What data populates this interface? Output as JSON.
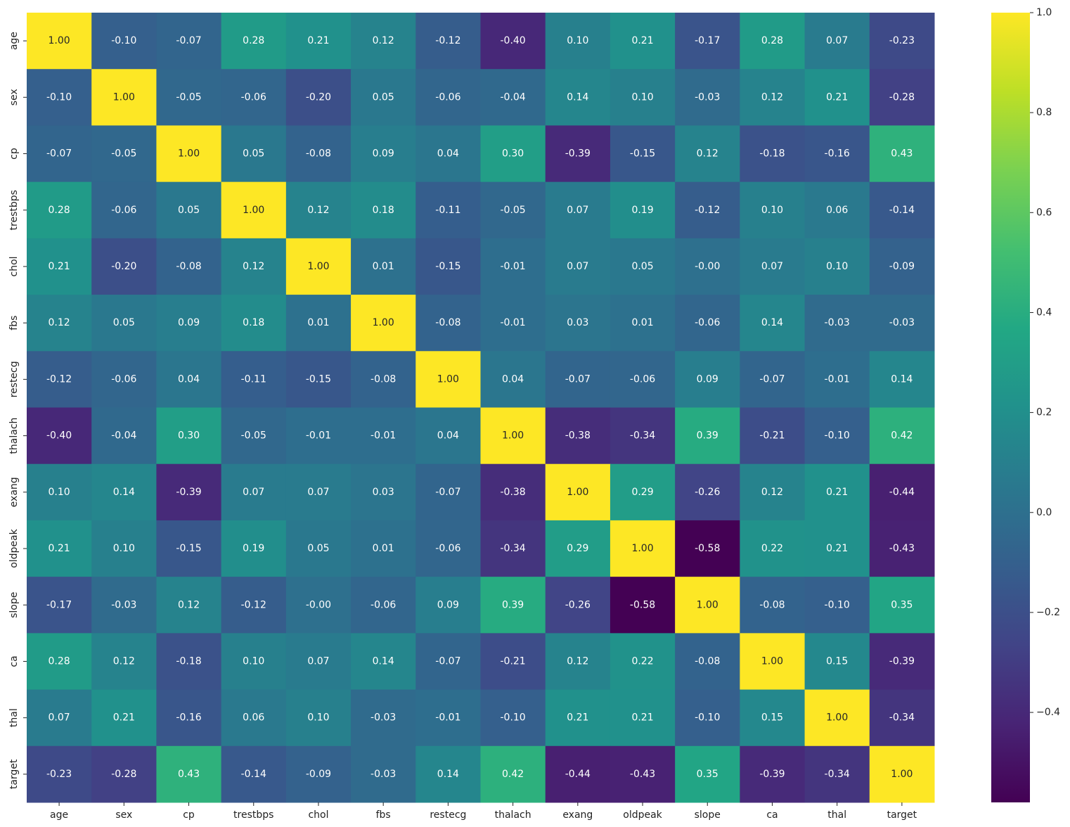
{
  "chart_data": {
    "type": "heatmap",
    "cmap": "viridis",
    "categories": [
      "age",
      "sex",
      "cp",
      "trestbps",
      "chol",
      "fbs",
      "restecg",
      "thalach",
      "exang",
      "oldpeak",
      "slope",
      "ca",
      "thal",
      "target"
    ],
    "values": [
      [
        1,
        -0.1,
        -0.07,
        0.28,
        0.21,
        0.12,
        -0.12,
        -0.4,
        0.1,
        0.21,
        -0.17,
        0.28,
        0.07,
        -0.23
      ],
      [
        -0.1,
        1,
        -0.05,
        -0.06,
        -0.2,
        0.05,
        -0.06,
        -0.04,
        0.14,
        0.1,
        -0.03,
        0.12,
        0.21,
        -0.28
      ],
      [
        -0.07,
        -0.05,
        1,
        0.05,
        -0.08,
        0.09,
        0.04,
        0.3,
        -0.39,
        -0.15,
        0.12,
        -0.18,
        -0.16,
        0.43
      ],
      [
        0.28,
        -0.06,
        0.05,
        1,
        0.12,
        0.18,
        -0.11,
        -0.05,
        0.07,
        0.19,
        -0.12,
        0.1,
        0.06,
        -0.14
      ],
      [
        0.21,
        -0.2,
        -0.08,
        0.12,
        1,
        0.01,
        -0.15,
        -0.01,
        0.07,
        0.05,
        0,
        0.07,
        0.1,
        -0.09
      ],
      [
        0.12,
        0.05,
        0.09,
        0.18,
        0.01,
        1,
        -0.08,
        -0.01,
        0.03,
        0.01,
        -0.06,
        0.14,
        -0.03,
        -0.03
      ],
      [
        -0.12,
        -0.06,
        0.04,
        -0.11,
        -0.15,
        -0.08,
        1,
        0.04,
        -0.07,
        -0.06,
        0.09,
        -0.07,
        -0.01,
        0.14
      ],
      [
        -0.4,
        -0.04,
        0.3,
        -0.05,
        -0.01,
        -0.01,
        0.04,
        1,
        -0.38,
        -0.34,
        0.39,
        -0.21,
        -0.1,
        0.42
      ],
      [
        0.1,
        0.14,
        -0.39,
        0.07,
        0.07,
        0.03,
        -0.07,
        -0.38,
        1,
        0.29,
        -0.26,
        0.12,
        0.21,
        -0.44
      ],
      [
        0.21,
        0.1,
        -0.15,
        0.19,
        0.05,
        0.01,
        -0.06,
        -0.34,
        0.29,
        1,
        -0.58,
        0.22,
        0.21,
        -0.43
      ],
      [
        -0.17,
        -0.03,
        0.12,
        -0.12,
        0,
        -0.06,
        0.09,
        0.39,
        -0.26,
        -0.58,
        1,
        -0.08,
        -0.1,
        0.35
      ],
      [
        0.28,
        0.12,
        -0.18,
        0.1,
        0.07,
        0.14,
        -0.07,
        -0.21,
        0.12,
        0.22,
        -0.08,
        1,
        0.15,
        -0.39
      ],
      [
        0.07,
        0.21,
        -0.16,
        0.06,
        0.1,
        -0.03,
        -0.01,
        -0.1,
        0.21,
        0.21,
        -0.1,
        0.15,
        1,
        -0.34
      ],
      [
        -0.23,
        -0.28,
        0.43,
        -0.14,
        -0.09,
        -0.03,
        0.14,
        0.42,
        -0.44,
        -0.43,
        0.35,
        -0.39,
        -0.34,
        1
      ]
    ],
    "value_labels": [
      [
        "1.00",
        "-0.10",
        "-0.07",
        "0.28",
        "0.21",
        "0.12",
        "-0.12",
        "-0.40",
        "0.10",
        "0.21",
        "-0.17",
        "0.28",
        "0.07",
        "-0.23"
      ],
      [
        "-0.10",
        "1.00",
        "-0.05",
        "-0.06",
        "-0.20",
        "0.05",
        "-0.06",
        "-0.04",
        "0.14",
        "0.10",
        "-0.03",
        "0.12",
        "0.21",
        "-0.28"
      ],
      [
        "-0.07",
        "-0.05",
        "1.00",
        "0.05",
        "-0.08",
        "0.09",
        "0.04",
        "0.30",
        "-0.39",
        "-0.15",
        "0.12",
        "-0.18",
        "-0.16",
        "0.43"
      ],
      [
        "0.28",
        "-0.06",
        "0.05",
        "1.00",
        "0.12",
        "0.18",
        "-0.11",
        "-0.05",
        "0.07",
        "0.19",
        "-0.12",
        "0.10",
        "0.06",
        "-0.14"
      ],
      [
        "0.21",
        "-0.20",
        "-0.08",
        "0.12",
        "1.00",
        "0.01",
        "-0.15",
        "-0.01",
        "0.07",
        "0.05",
        "-0.00",
        "0.07",
        "0.10",
        "-0.09"
      ],
      [
        "0.12",
        "0.05",
        "0.09",
        "0.18",
        "0.01",
        "1.00",
        "-0.08",
        "-0.01",
        "0.03",
        "0.01",
        "-0.06",
        "0.14",
        "-0.03",
        "-0.03"
      ],
      [
        "-0.12",
        "-0.06",
        "0.04",
        "-0.11",
        "-0.15",
        "-0.08",
        "1.00",
        "0.04",
        "-0.07",
        "-0.06",
        "0.09",
        "-0.07",
        "-0.01",
        "0.14"
      ],
      [
        "-0.40",
        "-0.04",
        "0.30",
        "-0.05",
        "-0.01",
        "-0.01",
        "0.04",
        "1.00",
        "-0.38",
        "-0.34",
        "0.39",
        "-0.21",
        "-0.10",
        "0.42"
      ],
      [
        "0.10",
        "0.14",
        "-0.39",
        "0.07",
        "0.07",
        "0.03",
        "-0.07",
        "-0.38",
        "1.00",
        "0.29",
        "-0.26",
        "0.12",
        "0.21",
        "-0.44"
      ],
      [
        "0.21",
        "0.10",
        "-0.15",
        "0.19",
        "0.05",
        "0.01",
        "-0.06",
        "-0.34",
        "0.29",
        "1.00",
        "-0.58",
        "0.22",
        "0.21",
        "-0.43"
      ],
      [
        "-0.17",
        "-0.03",
        "0.12",
        "-0.12",
        "-0.00",
        "-0.06",
        "0.09",
        "0.39",
        "-0.26",
        "-0.58",
        "1.00",
        "-0.08",
        "-0.10",
        "0.35"
      ],
      [
        "0.28",
        "0.12",
        "-0.18",
        "0.10",
        "0.07",
        "0.14",
        "-0.07",
        "-0.21",
        "0.12",
        "0.22",
        "-0.08",
        "1.00",
        "0.15",
        "-0.39"
      ],
      [
        "0.07",
        "0.21",
        "-0.16",
        "0.06",
        "0.10",
        "-0.03",
        "-0.01",
        "-0.10",
        "0.21",
        "0.21",
        "-0.10",
        "0.15",
        "1.00",
        "-0.34"
      ],
      [
        "-0.23",
        "-0.28",
        "0.43",
        "-0.14",
        "-0.09",
        "-0.03",
        "0.14",
        "0.42",
        "-0.44",
        "-0.43",
        "0.35",
        "-0.39",
        "-0.34",
        "1.00"
      ]
    ],
    "clim": [
      -0.58,
      1
    ],
    "cticks": [
      {
        "value": 1,
        "label": "1.0"
      },
      0.8,
      0.6,
      0.4,
      0.2,
      {
        "value": 0,
        "label": "0.0"
      },
      {
        "value": -0.2,
        "label": "−0.2"
      },
      {
        "value": -0.4,
        "label": "−0.4"
      }
    ]
  }
}
